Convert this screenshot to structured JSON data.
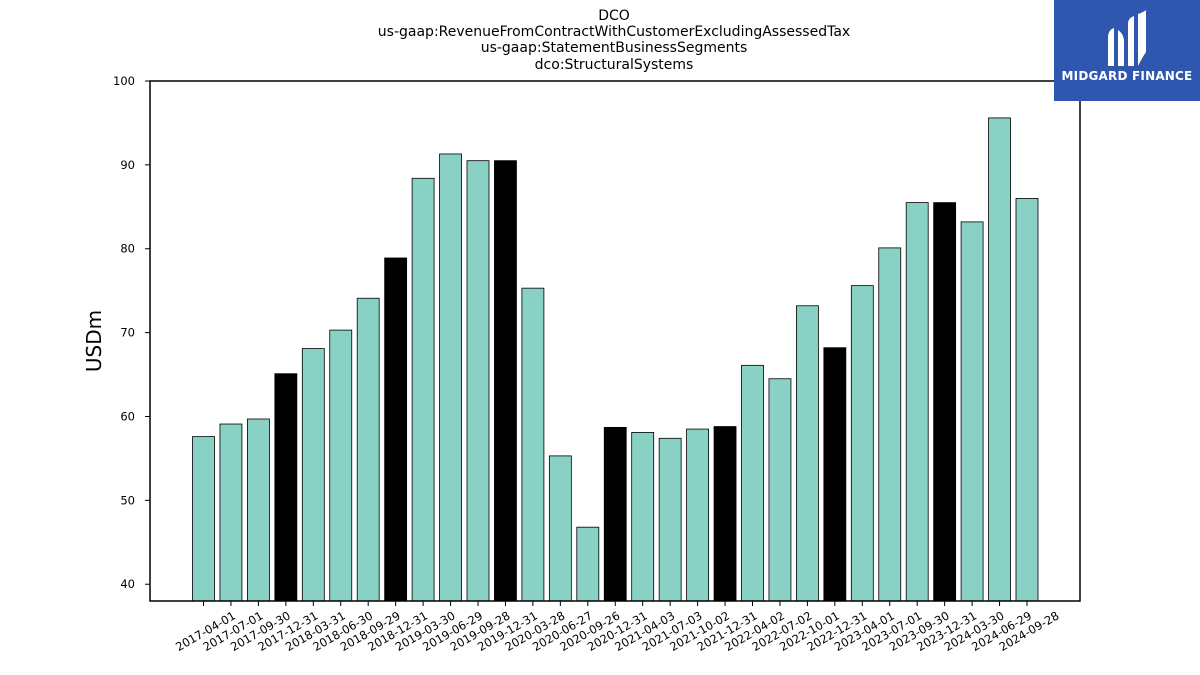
{
  "logo": {
    "text": "MIDGARD FINANCE"
  },
  "chart_data": {
    "type": "bar",
    "title_lines": [
      "DCO",
      "us-gaap:RevenueFromContractWithCustomerExcludingAssessedTax",
      "us-gaap:StatementBusinessSegments",
      "dco:StructuralSystems"
    ],
    "xlabel": "",
    "ylabel": "USDm",
    "ylim": [
      38,
      100
    ],
    "yticks": [
      40,
      50,
      60,
      70,
      80,
      90,
      100
    ],
    "grid": false,
    "colors": {
      "quarter": "#88d1c4",
      "year_end": "#000000",
      "edge": "#000000"
    },
    "categories": [
      "2017-04-01",
      "2017-07-01",
      "2017-09-30",
      "2017-12-31",
      "2018-03-31",
      "2018-06-30",
      "2018-09-29",
      "2018-12-31",
      "2019-03-30",
      "2019-06-29",
      "2019-09-28",
      "2019-12-31",
      "2020-03-28",
      "2020-06-27",
      "2020-09-26",
      "2020-12-31",
      "2021-04-03",
      "2021-07-03",
      "2021-10-02",
      "2021-12-31",
      "2022-04-02",
      "2022-07-02",
      "2022-10-01",
      "2022-12-31",
      "2023-04-01",
      "2023-07-01",
      "2023-09-30",
      "2023-12-31",
      "2024-03-30",
      "2024-06-29",
      "2024-09-28"
    ],
    "values": [
      57.6,
      59.1,
      59.7,
      65.1,
      68.1,
      70.3,
      74.1,
      78.9,
      88.4,
      91.3,
      90.5,
      90.5,
      75.3,
      55.3,
      46.8,
      58.7,
      58.1,
      57.4,
      58.5,
      58.8,
      66.1,
      64.5,
      73.2,
      68.2,
      75.6,
      80.1,
      85.5,
      85.5,
      83.2,
      95.6,
      86.0
    ],
    "highlight": [
      false,
      false,
      false,
      true,
      false,
      false,
      false,
      true,
      false,
      false,
      false,
      true,
      false,
      false,
      false,
      true,
      false,
      false,
      false,
      true,
      false,
      false,
      false,
      true,
      false,
      false,
      false,
      true,
      false,
      false,
      false
    ]
  }
}
